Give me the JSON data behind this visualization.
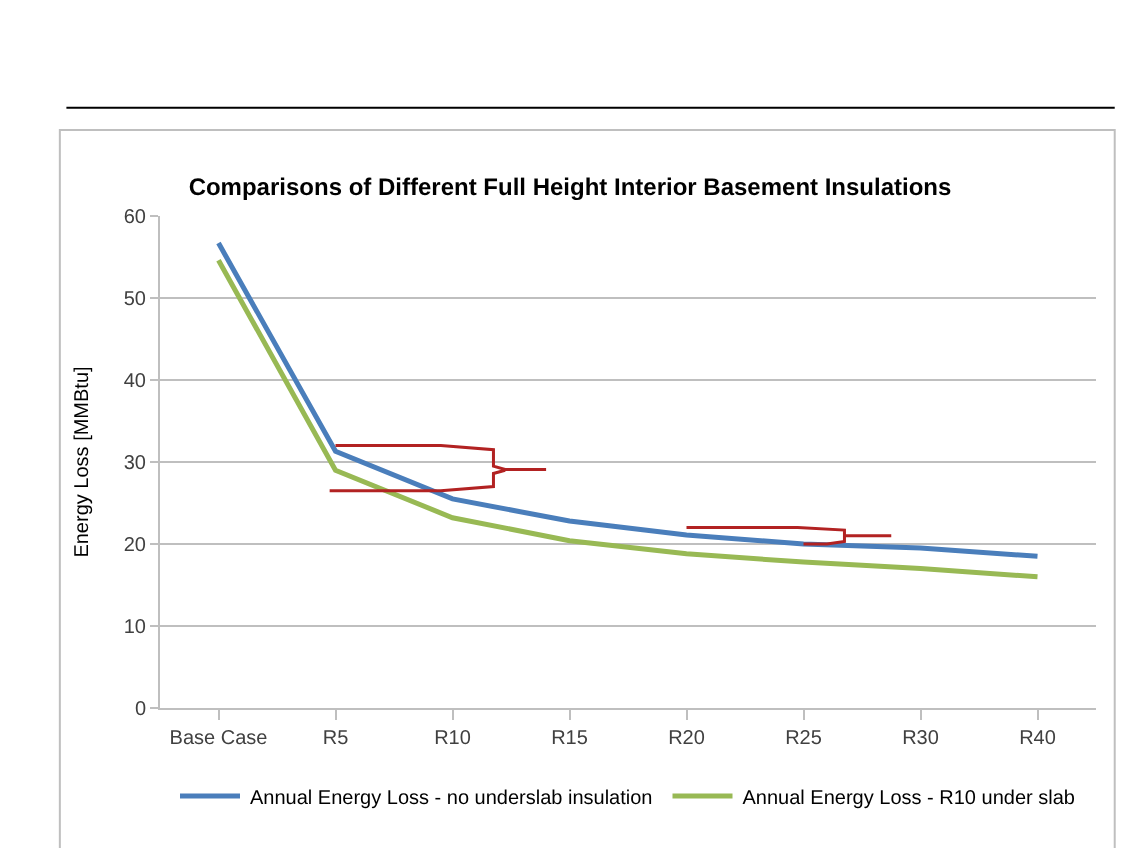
{
  "chart_data": {
    "type": "line",
    "title": "Comparisons of Different Full Height Interior Basement Insulations",
    "ylabel": "Energy Loss [MMBtu]",
    "categories": [
      "Base Case",
      "R5",
      "R10",
      "R15",
      "R20",
      "R25",
      "R30",
      "R40"
    ],
    "series": [
      {
        "name": "Annual Energy Loss - no underslab insulation",
        "color": "#4a7ebb",
        "values": [
          56.7,
          31.3,
          25.5,
          22.8,
          21.1,
          20.0,
          19.5,
          18.5
        ]
      },
      {
        "name": "Annual Energy Loss - R10 under slab",
        "color": "#98b954",
        "values": [
          54.6,
          29.0,
          23.2,
          20.4,
          18.8,
          17.8,
          17.0,
          16.0
        ]
      }
    ],
    "ylim": [
      0,
      60
    ],
    "yticks": [
      0,
      10,
      20,
      30,
      40,
      50,
      60
    ],
    "grid": "y",
    "legend": "bottom",
    "marker": "none",
    "line_style": "solid"
  }
}
